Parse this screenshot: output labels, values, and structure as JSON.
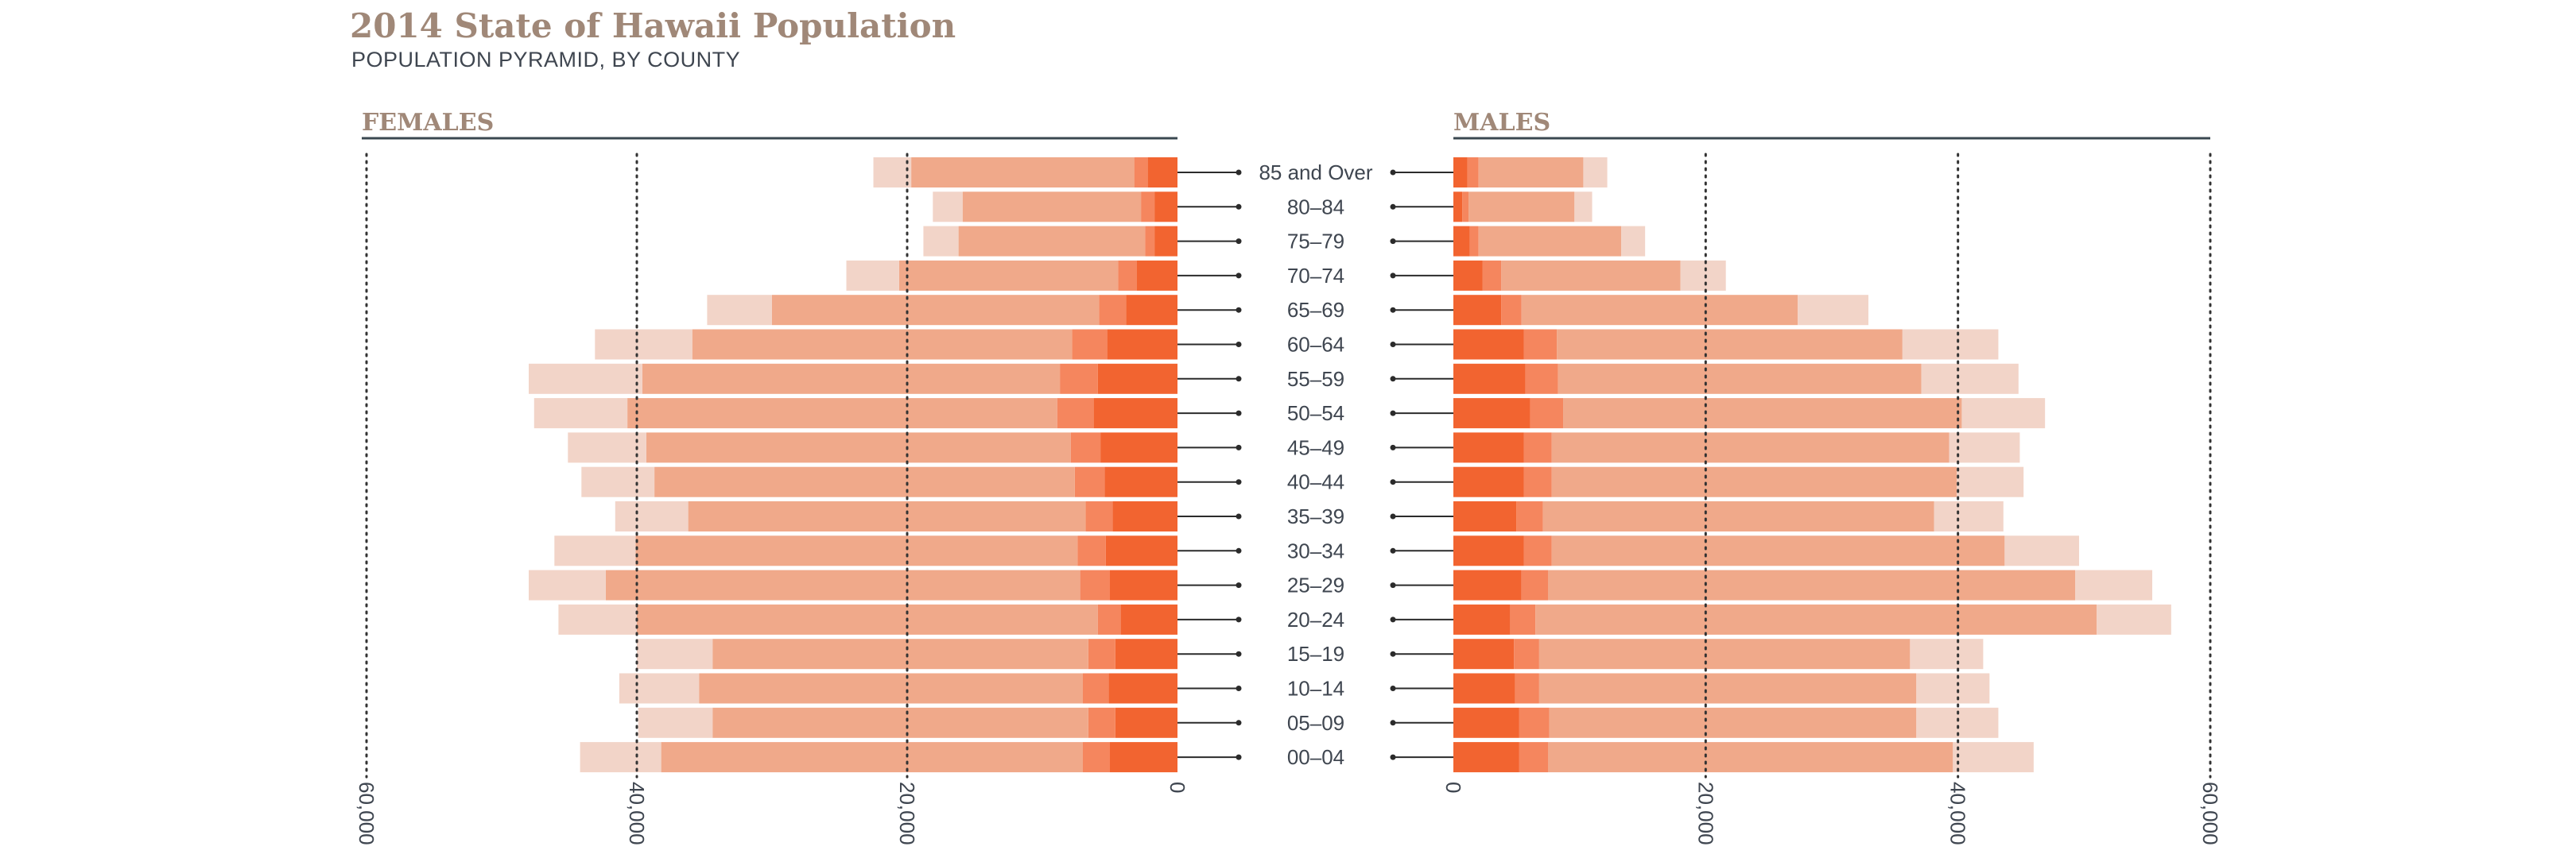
{
  "header": {
    "title": "2014 State of Hawaii Population",
    "subtitle": "POPULATION PYRAMID, BY COUNTY"
  },
  "colors": {
    "background": "#ffffff",
    "title": "#a08878",
    "text": "#3f4650",
    "axis": "#3a4850",
    "layers": [
      "#f26430",
      "#f5865e",
      "#f0a98a",
      "#f2d4c8"
    ]
  },
  "chart_data": {
    "type": "bar",
    "orientation": "horizontal",
    "stacked": true,
    "panels": [
      {
        "side": "left",
        "label": "FEMALES"
      },
      {
        "side": "right",
        "label": "MALES"
      }
    ],
    "categories": [
      "85 and Over",
      "80–84",
      "75–79",
      "70–74",
      "65–69",
      "60–64",
      "55–59",
      "50–54",
      "45–49",
      "40–44",
      "35–39",
      "30–34",
      "25–29",
      "20–24",
      "15–19",
      "10–14",
      "05–09",
      "00–04"
    ],
    "xlim": [
      0,
      60000
    ],
    "ticks": [
      0,
      20000,
      40000,
      60000
    ],
    "tick_labels": [
      "0",
      "20,000",
      "40,000",
      "60,000"
    ],
    "grid": "dotted vertical lines at 20,000, 40,000, 60,000",
    "layer_order": "darkest layer nearest the centre axis, lightest outermost",
    "females": [
      [
        2200,
        1000,
        16500,
        2800
      ],
      [
        1700,
        1000,
        13200,
        2200
      ],
      [
        1700,
        700,
        13800,
        2600
      ],
      [
        3000,
        1400,
        16200,
        3900
      ],
      [
        3800,
        2000,
        24200,
        4800
      ],
      [
        5200,
        2600,
        28100,
        7200
      ],
      [
        5900,
        2800,
        30900,
        8400
      ],
      [
        6200,
        2700,
        31800,
        6900
      ],
      [
        5700,
        2200,
        31400,
        5800
      ],
      [
        5400,
        2200,
        31100,
        5400
      ],
      [
        4800,
        2000,
        29400,
        5400
      ],
      [
        5300,
        2100,
        32700,
        6000
      ],
      [
        5000,
        2200,
        35100,
        5700
      ],
      [
        4200,
        1700,
        34100,
        5800
      ],
      [
        4600,
        2000,
        27800,
        5600
      ],
      [
        5100,
        1900,
        28400,
        5900
      ],
      [
        4600,
        2000,
        27800,
        5500
      ],
      [
        5000,
        2000,
        31200,
        6000
      ]
    ],
    "males": [
      [
        1100,
        900,
        8300,
        1900
      ],
      [
        700,
        500,
        8400,
        1400
      ],
      [
        1300,
        700,
        11300,
        1900
      ],
      [
        2300,
        1500,
        14200,
        3600
      ],
      [
        3800,
        1600,
        21900,
        5600
      ],
      [
        5600,
        2600,
        27400,
        7600
      ],
      [
        5700,
        2600,
        28800,
        7700
      ],
      [
        6100,
        2600,
        31600,
        6600
      ],
      [
        5600,
        2200,
        31500,
        5600
      ],
      [
        5600,
        2200,
        32100,
        5300
      ],
      [
        5000,
        2100,
        31000,
        5500
      ],
      [
        5600,
        2200,
        35900,
        5900
      ],
      [
        5400,
        2100,
        41800,
        6100
      ],
      [
        4500,
        2000,
        44500,
        5900
      ],
      [
        4800,
        2000,
        29400,
        5800
      ],
      [
        4900,
        1900,
        29900,
        5800
      ],
      [
        5200,
        2400,
        29100,
        6500
      ],
      [
        5200,
        2300,
        32100,
        6400
      ]
    ]
  }
}
